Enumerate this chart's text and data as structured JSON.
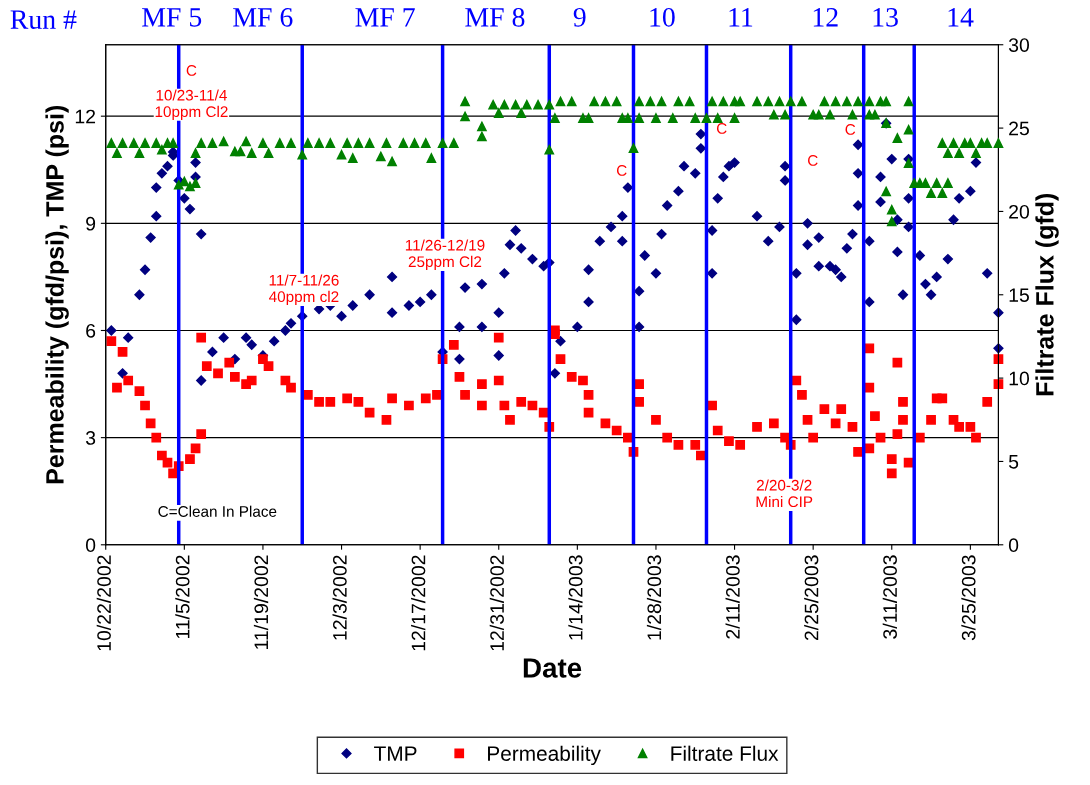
{
  "chart_data": {
    "type": "scatter",
    "xlabel": "Date",
    "ylabel": "Permeability (gfd/psi), TMP (psi)",
    "y2label": "Filtrate Flux (gfd)",
    "xlim": [
      "2002-10-22",
      "2003-03-30"
    ],
    "xticks": [
      {
        "value": "2002-10-22",
        "label": "10/22/2002"
      },
      {
        "value": "2002-11-05",
        "label": "11/5/2002"
      },
      {
        "value": "2002-11-19",
        "label": "11/19/2002"
      },
      {
        "value": "2002-12-03",
        "label": "12/3/2002"
      },
      {
        "value": "2002-12-17",
        "label": "12/17/2002"
      },
      {
        "value": "2002-12-31",
        "label": "12/31/2002"
      },
      {
        "value": "2003-01-14",
        "label": "1/14/2003"
      },
      {
        "value": "2003-01-28",
        "label": "1/28/2003"
      },
      {
        "value": "2003-02-11",
        "label": "2/11/2003"
      },
      {
        "value": "2003-02-25",
        "label": "2/25/2003"
      },
      {
        "value": "2003-03-11",
        "label": "3/11/2003"
      },
      {
        "value": "2003-03-25",
        "label": "3/25/2003"
      }
    ],
    "ylim": [
      0,
      14
    ],
    "yticks": [
      0,
      3,
      6,
      9,
      12
    ],
    "y2lim": [
      0,
      30
    ],
    "y2ticks": [
      0,
      5,
      10,
      15,
      20,
      25,
      30
    ],
    "grid": "y",
    "legend": "bottom",
    "series": [
      {
        "name": "TMP",
        "color": "#000080",
        "marker": "diamond",
        "x": [
          "2002-10-23",
          "2002-10-25",
          "2002-10-26",
          "2002-10-28",
          "2002-10-29",
          "2002-10-30",
          "2002-10-31",
          "2002-10-31",
          "2002-11-01",
          "2002-11-02",
          "2002-11-03",
          "2002-11-03",
          "2002-11-04",
          "2002-11-05",
          "2002-11-06",
          "2002-11-07",
          "2002-11-07",
          "2002-11-08",
          "2002-11-08",
          "2002-11-10",
          "2002-11-12",
          "2002-11-14",
          "2002-11-16",
          "2002-11-17",
          "2002-11-19",
          "2002-11-21",
          "2002-11-23",
          "2002-11-24",
          "2002-11-26",
          "2002-11-29",
          "2002-12-01",
          "2002-12-03",
          "2002-12-05",
          "2002-12-08",
          "2002-12-12",
          "2002-12-12",
          "2002-12-15",
          "2002-12-17",
          "2002-12-19",
          "2002-12-21",
          "2002-12-24",
          "2002-12-24",
          "2002-12-25",
          "2002-12-28",
          "2002-12-28",
          "2002-12-31",
          "2002-12-31",
          "2003-01-01",
          "2003-01-02",
          "2003-01-03",
          "2003-01-04",
          "2003-01-06",
          "2003-01-08",
          "2003-01-09",
          "2003-01-10",
          "2003-01-11",
          "2003-01-14",
          "2003-01-16",
          "2003-01-16",
          "2003-01-18",
          "2003-01-20",
          "2003-01-22",
          "2003-01-22",
          "2003-01-23",
          "2003-01-25",
          "2003-01-25",
          "2003-01-26",
          "2003-01-28",
          "2003-01-29",
          "2003-01-30",
          "2003-02-01",
          "2003-02-02",
          "2003-02-04",
          "2003-02-05",
          "2003-02-05",
          "2003-02-07",
          "2003-02-07",
          "2003-02-08",
          "2003-02-09",
          "2003-02-10",
          "2003-02-11",
          "2003-02-15",
          "2003-02-17",
          "2003-02-19",
          "2003-02-20",
          "2003-02-20",
          "2003-02-22",
          "2003-02-22",
          "2003-02-24",
          "2003-02-24",
          "2003-02-26",
          "2003-02-26",
          "2003-02-28",
          "2003-03-01",
          "2003-03-02",
          "2003-03-03",
          "2003-03-04",
          "2003-03-05",
          "2003-03-05",
          "2003-03-05",
          "2003-03-07",
          "2003-03-07",
          "2003-03-09",
          "2003-03-09",
          "2003-03-10",
          "2003-03-11",
          "2003-03-12",
          "2003-03-12",
          "2003-03-13",
          "2003-03-14",
          "2003-03-14",
          "2003-03-14",
          "2003-03-16",
          "2003-03-17",
          "2003-03-18",
          "2003-03-19",
          "2003-03-21",
          "2003-03-22",
          "2003-03-23",
          "2003-03-25",
          "2003-03-26",
          "2003-03-28",
          "2003-03-30",
          "2003-03-30"
        ],
        "values": [
          6.0,
          4.8,
          5.8,
          7.0,
          7.7,
          8.6,
          9.2,
          10.0,
          10.4,
          10.6,
          10.9,
          11.0,
          10.2,
          9.7,
          9.4,
          10.3,
          10.7,
          8.7,
          4.6,
          5.4,
          5.8,
          5.2,
          5.8,
          5.6,
          5.3,
          5.7,
          6.0,
          6.2,
          6.4,
          6.6,
          6.7,
          6.4,
          6.7,
          7.0,
          7.5,
          6.5,
          6.7,
          6.8,
          7.0,
          5.4,
          5.2,
          6.1,
          7.2,
          7.3,
          6.1,
          5.3,
          6.5,
          7.6,
          8.4,
          8.8,
          8.3,
          8.0,
          7.8,
          7.9,
          4.8,
          5.7,
          6.1,
          6.8,
          7.7,
          8.5,
          8.9,
          9.2,
          8.5,
          10.0,
          6.1,
          7.1,
          8.1,
          7.6,
          8.7,
          9.5,
          9.9,
          10.6,
          10.4,
          11.1,
          11.5,
          7.6,
          8.8,
          9.7,
          10.3,
          10.6,
          10.7,
          9.2,
          8.5,
          8.9,
          10.6,
          10.2,
          7.6,
          6.3,
          8.4,
          9.0,
          8.6,
          7.8,
          7.8,
          7.7,
          7.5,
          8.3,
          8.7,
          9.5,
          10.4,
          11.2,
          6.8,
          8.5,
          9.6,
          10.3,
          11.8,
          10.8,
          9.1,
          8.2,
          7.0,
          9.7,
          10.8,
          8.9,
          8.1,
          7.3,
          7.0,
          7.5,
          8.0,
          9.1,
          9.7,
          9.9,
          10.7,
          7.6,
          6.5,
          5.5
        ]
      },
      {
        "name": "Permeability",
        "color": "#ff0000",
        "marker": "square",
        "x": [
          "2002-10-23",
          "2002-10-24",
          "2002-10-25",
          "2002-10-26",
          "2002-10-28",
          "2002-10-29",
          "2002-10-30",
          "2002-10-31",
          "2002-11-01",
          "2002-11-02",
          "2002-11-03",
          "2002-11-04",
          "2002-11-06",
          "2002-11-07",
          "2002-11-08",
          "2002-11-08",
          "2002-11-09",
          "2002-11-11",
          "2002-11-13",
          "2002-11-14",
          "2002-11-16",
          "2002-11-17",
          "2002-11-19",
          "2002-11-20",
          "2002-11-23",
          "2002-11-24",
          "2002-11-27",
          "2002-11-29",
          "2002-12-01",
          "2002-12-04",
          "2002-12-06",
          "2002-12-08",
          "2002-12-11",
          "2002-12-12",
          "2002-12-15",
          "2002-12-18",
          "2002-12-20",
          "2002-12-21",
          "2002-12-23",
          "2002-12-24",
          "2002-12-25",
          "2002-12-28",
          "2002-12-28",
          "2002-12-31",
          "2002-12-31",
          "2003-01-01",
          "2003-01-02",
          "2003-01-04",
          "2003-01-06",
          "2003-01-08",
          "2003-01-09",
          "2003-01-10",
          "2003-01-10",
          "2003-01-11",
          "2003-01-13",
          "2003-01-15",
          "2003-01-16",
          "2003-01-16",
          "2003-01-19",
          "2003-01-21",
          "2003-01-23",
          "2003-01-24",
          "2003-01-25",
          "2003-01-25",
          "2003-01-28",
          "2003-01-30",
          "2003-02-01",
          "2003-02-04",
          "2003-02-05",
          "2003-02-07",
          "2003-02-08",
          "2003-02-10",
          "2003-02-12",
          "2003-02-15",
          "2003-02-18",
          "2003-02-20",
          "2003-02-21",
          "2003-02-22",
          "2003-02-23",
          "2003-02-24",
          "2003-02-25",
          "2003-02-27",
          "2003-03-01",
          "2003-03-02",
          "2003-03-04",
          "2003-03-05",
          "2003-03-07",
          "2003-03-07",
          "2003-03-07",
          "2003-03-08",
          "2003-03-09",
          "2003-03-11",
          "2003-03-11",
          "2003-03-12",
          "2003-03-12",
          "2003-03-13",
          "2003-03-13",
          "2003-03-14",
          "2003-03-16",
          "2003-03-18",
          "2003-03-19",
          "2003-03-20",
          "2003-03-22",
          "2003-03-23",
          "2003-03-25",
          "2003-03-26",
          "2003-03-28",
          "2003-03-30",
          "2003-03-30"
        ],
        "values": [
          5.7,
          4.4,
          5.4,
          4.6,
          4.3,
          3.9,
          3.4,
          3.0,
          2.5,
          2.3,
          2.0,
          2.2,
          2.4,
          2.7,
          3.1,
          5.8,
          5.0,
          4.8,
          5.1,
          4.7,
          4.5,
          4.6,
          5.2,
          5.0,
          4.6,
          4.4,
          4.2,
          4.0,
          4.0,
          4.1,
          4.0,
          3.7,
          3.5,
          4.1,
          3.9,
          4.1,
          4.2,
          5.2,
          5.6,
          4.7,
          4.2,
          4.5,
          3.9,
          5.8,
          4.6,
          3.9,
          3.5,
          4.0,
          3.9,
          3.7,
          3.3,
          6.0,
          5.9,
          5.2,
          4.7,
          4.6,
          4.2,
          3.7,
          3.4,
          3.2,
          3.0,
          2.6,
          4.5,
          4.0,
          3.5,
          3.0,
          2.8,
          2.8,
          2.5,
          3.9,
          3.2,
          2.9,
          2.8,
          3.3,
          3.4,
          3.0,
          2.8,
          4.6,
          4.2,
          3.5,
          3.0,
          3.8,
          3.4,
          3.8,
          3.3,
          2.6,
          2.7,
          5.5,
          4.4,
          3.6,
          3.0,
          2.4,
          2.0,
          5.1,
          3.1,
          4.0,
          3.5,
          2.3,
          3.0,
          3.5,
          4.1,
          4.1,
          3.5,
          3.3,
          3.3,
          3.0,
          4.0,
          5.2,
          4.5
        ]
      },
      {
        "name": "Filtrate Flux",
        "color": "#008000",
        "marker": "triangle",
        "axis": "y2",
        "x": [
          "2002-10-23",
          "2002-10-24",
          "2002-10-25",
          "2002-10-27",
          "2002-10-28",
          "2002-10-29",
          "2002-10-31",
          "2002-11-01",
          "2002-11-02",
          "2002-11-03",
          "2002-11-04",
          "2002-11-05",
          "2002-11-06",
          "2002-11-07",
          "2002-11-07",
          "2002-11-08",
          "2002-11-10",
          "2002-11-12",
          "2002-11-14",
          "2002-11-15",
          "2002-11-16",
          "2002-11-17",
          "2002-11-19",
          "2002-11-20",
          "2002-11-22",
          "2002-11-24",
          "2002-11-26",
          "2002-11-27",
          "2002-11-29",
          "2002-12-01",
          "2002-12-03",
          "2002-12-04",
          "2002-12-05",
          "2002-12-06",
          "2002-12-08",
          "2002-12-10",
          "2002-12-11",
          "2002-12-12",
          "2002-12-14",
          "2002-12-16",
          "2002-12-18",
          "2002-12-19",
          "2002-12-21",
          "2002-12-23",
          "2002-12-25",
          "2002-12-25",
          "2002-12-28",
          "2002-12-28",
          "2002-12-30",
          "2002-12-31",
          "2003-01-01",
          "2003-01-03",
          "2003-01-04",
          "2003-01-05",
          "2003-01-07",
          "2003-01-09",
          "2003-01-09",
          "2003-01-10",
          "2003-01-11",
          "2003-01-13",
          "2003-01-15",
          "2003-01-16",
          "2003-01-17",
          "2003-01-19",
          "2003-01-21",
          "2003-01-22",
          "2003-01-23",
          "2003-01-24",
          "2003-01-25",
          "2003-01-25",
          "2003-01-27",
          "2003-01-28",
          "2003-01-29",
          "2003-01-31",
          "2003-02-01",
          "2003-02-03",
          "2003-02-04",
          "2003-02-06",
          "2003-02-07",
          "2003-02-08",
          "2003-02-09",
          "2003-02-11",
          "2003-02-11",
          "2003-02-12",
          "2003-02-15",
          "2003-02-17",
          "2003-02-19",
          "2003-02-18",
          "2003-02-20",
          "2003-02-21",
          "2003-02-23",
          "2003-02-25",
          "2003-02-26",
          "2003-02-27",
          "2003-02-28",
          "2003-03-01",
          "2003-03-03",
          "2003-03-04",
          "2003-03-05",
          "2003-03-07",
          "2003-03-07",
          "2003-03-08",
          "2003-03-09",
          "2003-03-10",
          "2003-03-10",
          "2003-03-10",
          "2003-03-11",
          "2003-03-11",
          "2003-03-12",
          "2003-03-14",
          "2003-03-14",
          "2003-03-14",
          "2003-03-15",
          "2003-03-16",
          "2003-03-17",
          "2003-03-18",
          "2003-03-19",
          "2003-03-20",
          "2003-03-21",
          "2003-03-20",
          "2003-03-21",
          "2003-03-22",
          "2003-03-23",
          "2003-03-24",
          "2003-03-25",
          "2003-03-26",
          "2003-03-27",
          "2003-03-28",
          "2003-03-30"
        ],
        "values": [
          24.1,
          23.5,
          24.1,
          24.1,
          23.5,
          24.1,
          24.1,
          23.7,
          24.1,
          24.1,
          21.6,
          21.8,
          21.5,
          21.7,
          23.5,
          24.1,
          24.1,
          24.2,
          23.6,
          23.6,
          24.2,
          23.5,
          24.1,
          23.5,
          24.1,
          24.1,
          23.4,
          24.1,
          24.1,
          24.1,
          23.4,
          24.1,
          23.2,
          24.1,
          24.1,
          23.3,
          24.1,
          23.0,
          24.1,
          24.1,
          24.1,
          23.2,
          24.1,
          24.1,
          25.7,
          26.6,
          25.1,
          24.5,
          26.4,
          25.9,
          26.4,
          26.4,
          25.9,
          26.4,
          26.4,
          23.7,
          26.4,
          25.6,
          26.6,
          26.6,
          25.6,
          25.6,
          26.6,
          26.6,
          26.6,
          25.6,
          25.6,
          23.8,
          25.6,
          26.6,
          26.6,
          25.6,
          26.6,
          25.6,
          26.6,
          26.6,
          25.6,
          25.6,
          26.6,
          25.6,
          26.6,
          26.6,
          25.6,
          26.6,
          26.6,
          26.6,
          26.6,
          25.8,
          25.8,
          26.6,
          26.6,
          25.8,
          25.8,
          26.6,
          25.8,
          26.6,
          26.6,
          25.8,
          26.6,
          25.8,
          26.6,
          25.8,
          26.6,
          26.6,
          25.3,
          21.2,
          20.1,
          19.4,
          24.4,
          24.9,
          22.9,
          26.6,
          21.7,
          21.7,
          21.7,
          21.1,
          21.7,
          21.1,
          21.7,
          24.1,
          23.5,
          24.1,
          23.5,
          24.1,
          24.1,
          23.5,
          24.1,
          24.1,
          24.1
        ]
      }
    ],
    "ref_lines": [
      {
        "axis": "x",
        "value": "2002-11-04",
        "color": "#0000ff"
      },
      {
        "axis": "x",
        "value": "2002-11-26",
        "color": "#0000ff"
      },
      {
        "axis": "x",
        "value": "2002-12-21",
        "color": "#0000ff"
      },
      {
        "axis": "x",
        "value": "2003-01-09",
        "color": "#0000ff"
      },
      {
        "axis": "x",
        "value": "2003-01-24",
        "color": "#0000ff"
      },
      {
        "axis": "x",
        "value": "2003-02-06",
        "color": "#0000ff"
      },
      {
        "axis": "x",
        "value": "2003-02-21",
        "color": "#0000ff"
      },
      {
        "axis": "x",
        "value": "2003-03-06",
        "color": "#0000ff"
      },
      {
        "axis": "x",
        "value": "2003-03-15",
        "color": "#0000ff"
      }
    ],
    "annotations": [
      "Run #",
      "C=Clean In Place",
      "MF 5",
      "MF 6",
      "MF 7",
      "MF 8",
      "9",
      "10",
      "11",
      "12",
      "13",
      "14",
      "C",
      "10/23-11/4\n10ppm Cl2",
      "11/7-11/26\n40ppm cl2",
      "11/26-12/19\n25ppm Cl2",
      "C",
      "C",
      "C",
      "C",
      "2/20-3/2\nMini CIP"
    ]
  }
}
